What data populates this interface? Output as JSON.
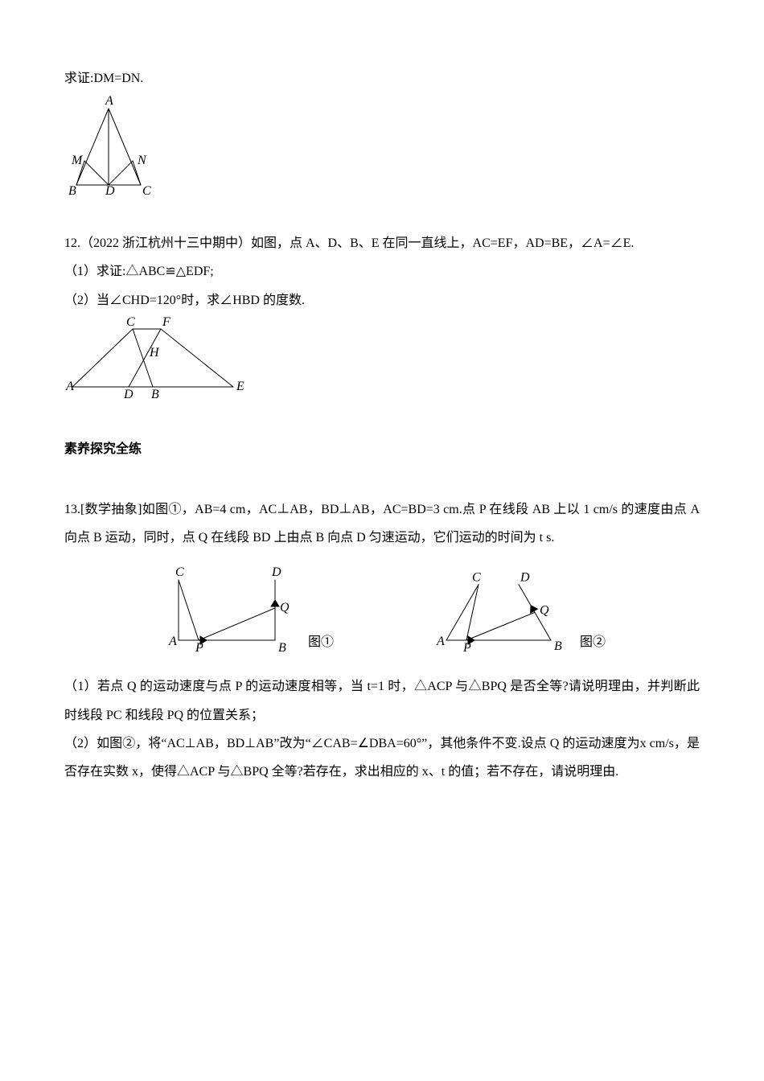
{
  "proof_line": "求证:DM=DN.",
  "fig_q11": {
    "labels": {
      "A": "A",
      "B": "B",
      "C": "C",
      "D": "D",
      "M": "M",
      "N": "N"
    },
    "label_font": "italic 16px serif",
    "stroke": "#000000",
    "stroke_width": 1
  },
  "q12": {
    "stem": "12.（2022 浙江杭州十三中期中）如图，点 A、D、B、E 在同一直线上，AC=EF，AD=BE，∠A=∠E.",
    "p1": "（1）求证:△ABC≌△EDF;",
    "p2": "（2）当∠CHD=120°时，求∠HBD 的度数.",
    "fig": {
      "labels": {
        "A": "A",
        "B": "B",
        "C": "C",
        "D": "D",
        "E": "E",
        "F": "F",
        "H": "H"
      },
      "label_font": "italic 16px serif",
      "stroke": "#000000",
      "stroke_width": 1
    }
  },
  "section_heading": "素养探究全练",
  "q13": {
    "stem": "13.[数学抽象]如图①，AB=4 cm，AC⊥AB，BD⊥AB，AC=BD=3 cm.点 P 在线段 AB 上以 1 cm/s 的速度由点 A 向点 B 运动，同时，点 Q 在线段 BD 上由点 B 向点 D 匀速运动，它们运动的时间为 t s.",
    "p1": "（1）若点 Q 的运动速度与点 P 的运动速度相等，当 t=1 时，△ACP 与△BPQ 是否全等?请说明理由，并判断此时线段 PC 和线段 PQ 的位置关系；",
    "p2": "（2）如图②，将“AC⊥AB，BD⊥AB”改为“∠CAB=∠DBA=60°”，其他条件不变.设点 Q 的运动速度为x cm/s，是否存在实数 x，使得△ACP 与△BPQ 全等?若存在，求出相应的 x、t 的值；若不存在，请说明理由.",
    "fig1_caption": "图①",
    "fig2_caption": "图②",
    "fig": {
      "labels": {
        "A": "A",
        "B": "B",
        "C": "C",
        "D": "D",
        "P": "P",
        "Q": "Q"
      },
      "label_font": "italic 16px serif",
      "stroke": "#000000",
      "stroke_width": 1,
      "arrow_size": 5
    }
  }
}
